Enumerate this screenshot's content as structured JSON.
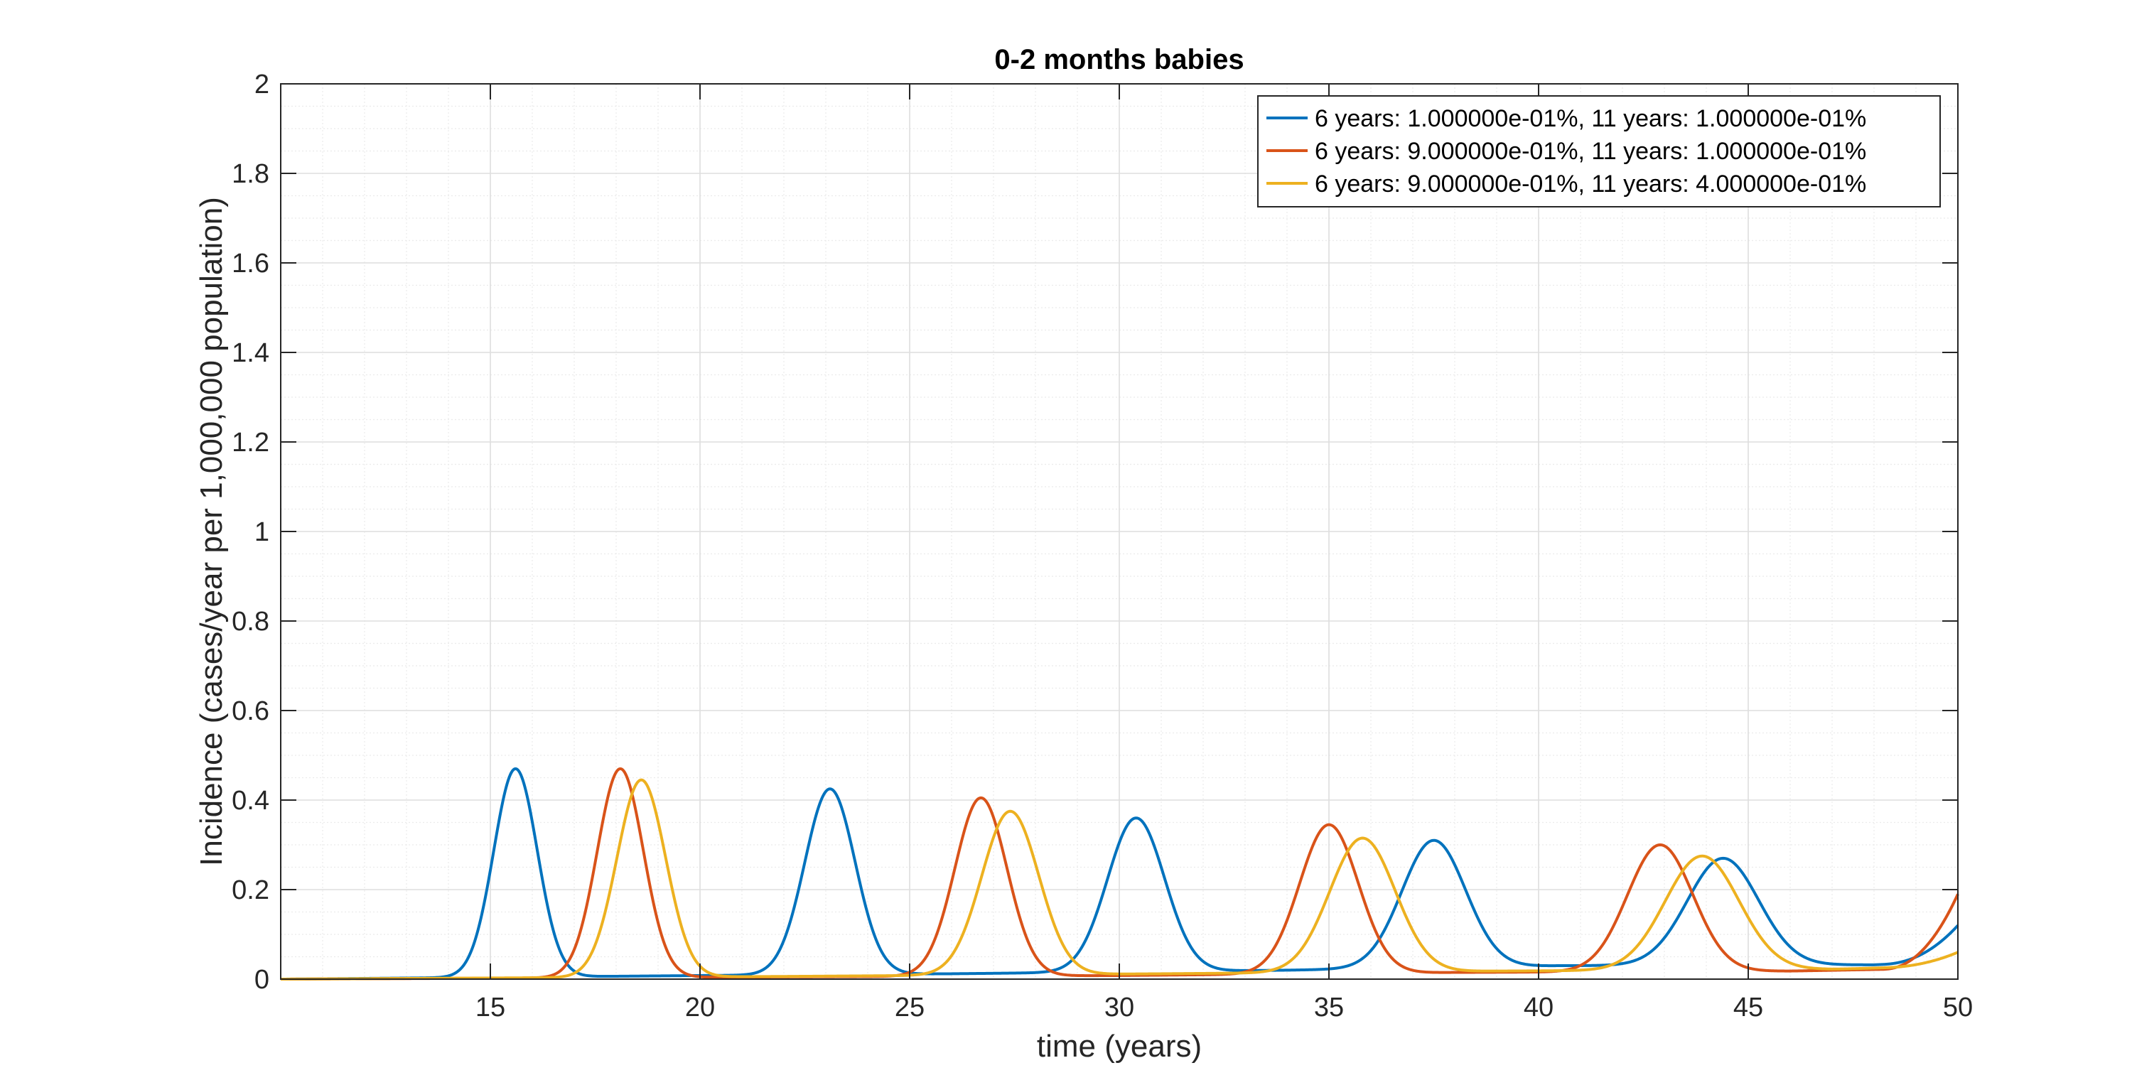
{
  "chart_data": {
    "type": "line",
    "title": "0-2 months babies",
    "xlabel": "time (years)",
    "ylabel": "Incidence (cases/year per 1,000,000 population)",
    "xlim": [
      10,
      50
    ],
    "ylim": [
      0,
      2
    ],
    "xticks": [
      15,
      20,
      25,
      30,
      35,
      40,
      45,
      50
    ],
    "yticks": [
      0,
      0.2,
      0.4,
      0.6,
      0.8,
      1,
      1.2,
      1.4,
      1.6,
      1.8,
      2
    ],
    "xtick_labels": [
      "15",
      "20",
      "25",
      "30",
      "35",
      "40",
      "45",
      "50"
    ],
    "ytick_labels": [
      "0",
      "0.2",
      "0.4",
      "0.6",
      "0.8",
      "1",
      "1.2",
      "1.4",
      "1.6",
      "1.8",
      "2"
    ],
    "grid": true,
    "minor_grid": true,
    "box": true,
    "legend_position": "top-right",
    "series": [
      {
        "name": "6 years: 1.000000e-01%, 11 years: 1.000000e-01%",
        "color": "#0072BD",
        "peaks": [
          {
            "x": 15.6,
            "y": 0.47,
            "width": 0.52
          },
          {
            "x": 23.1,
            "y": 0.425,
            "width": 0.6
          },
          {
            "x": 30.4,
            "y": 0.36,
            "width": 0.68
          },
          {
            "x": 37.5,
            "y": 0.31,
            "width": 0.76
          },
          {
            "x": 44.4,
            "y": 0.27,
            "width": 0.85
          }
        ],
        "baseline": [
          [
            10,
            0.0
          ],
          [
            20,
            0.008
          ],
          [
            26,
            0.012
          ],
          [
            34,
            0.02
          ],
          [
            40.5,
            0.03
          ],
          [
            48,
            0.032
          ],
          [
            50,
            0.04
          ]
        ],
        "end_value": 0.12
      },
      {
        "name": "6 years: 9.000000e-01%, 11 years: 1.000000e-01%",
        "color": "#D95319",
        "peaks": [
          {
            "x": 18.1,
            "y": 0.47,
            "width": 0.55
          },
          {
            "x": 26.7,
            "y": 0.405,
            "width": 0.62
          },
          {
            "x": 35.0,
            "y": 0.345,
            "width": 0.7
          },
          {
            "x": 42.9,
            "y": 0.3,
            "width": 0.78
          }
        ],
        "baseline": [
          [
            10,
            0.0
          ],
          [
            22,
            0.005
          ],
          [
            30,
            0.008
          ],
          [
            38,
            0.015
          ],
          [
            46,
            0.018
          ],
          [
            50,
            0.025
          ]
        ],
        "end_value": 0.19
      },
      {
        "name": "6 years: 9.000000e-01%, 11 years: 4.000000e-01%",
        "color": "#EDB120",
        "peaks": [
          {
            "x": 18.6,
            "y": 0.445,
            "width": 0.58
          },
          {
            "x": 27.4,
            "y": 0.375,
            "width": 0.68
          },
          {
            "x": 35.8,
            "y": 0.315,
            "width": 0.78
          },
          {
            "x": 43.9,
            "y": 0.275,
            "width": 0.88
          }
        ],
        "baseline": [
          [
            10,
            0.0
          ],
          [
            22,
            0.006
          ],
          [
            31,
            0.012
          ],
          [
            39,
            0.018
          ],
          [
            47,
            0.022
          ],
          [
            50,
            0.03
          ]
        ],
        "end_value": 0.06
      }
    ]
  }
}
